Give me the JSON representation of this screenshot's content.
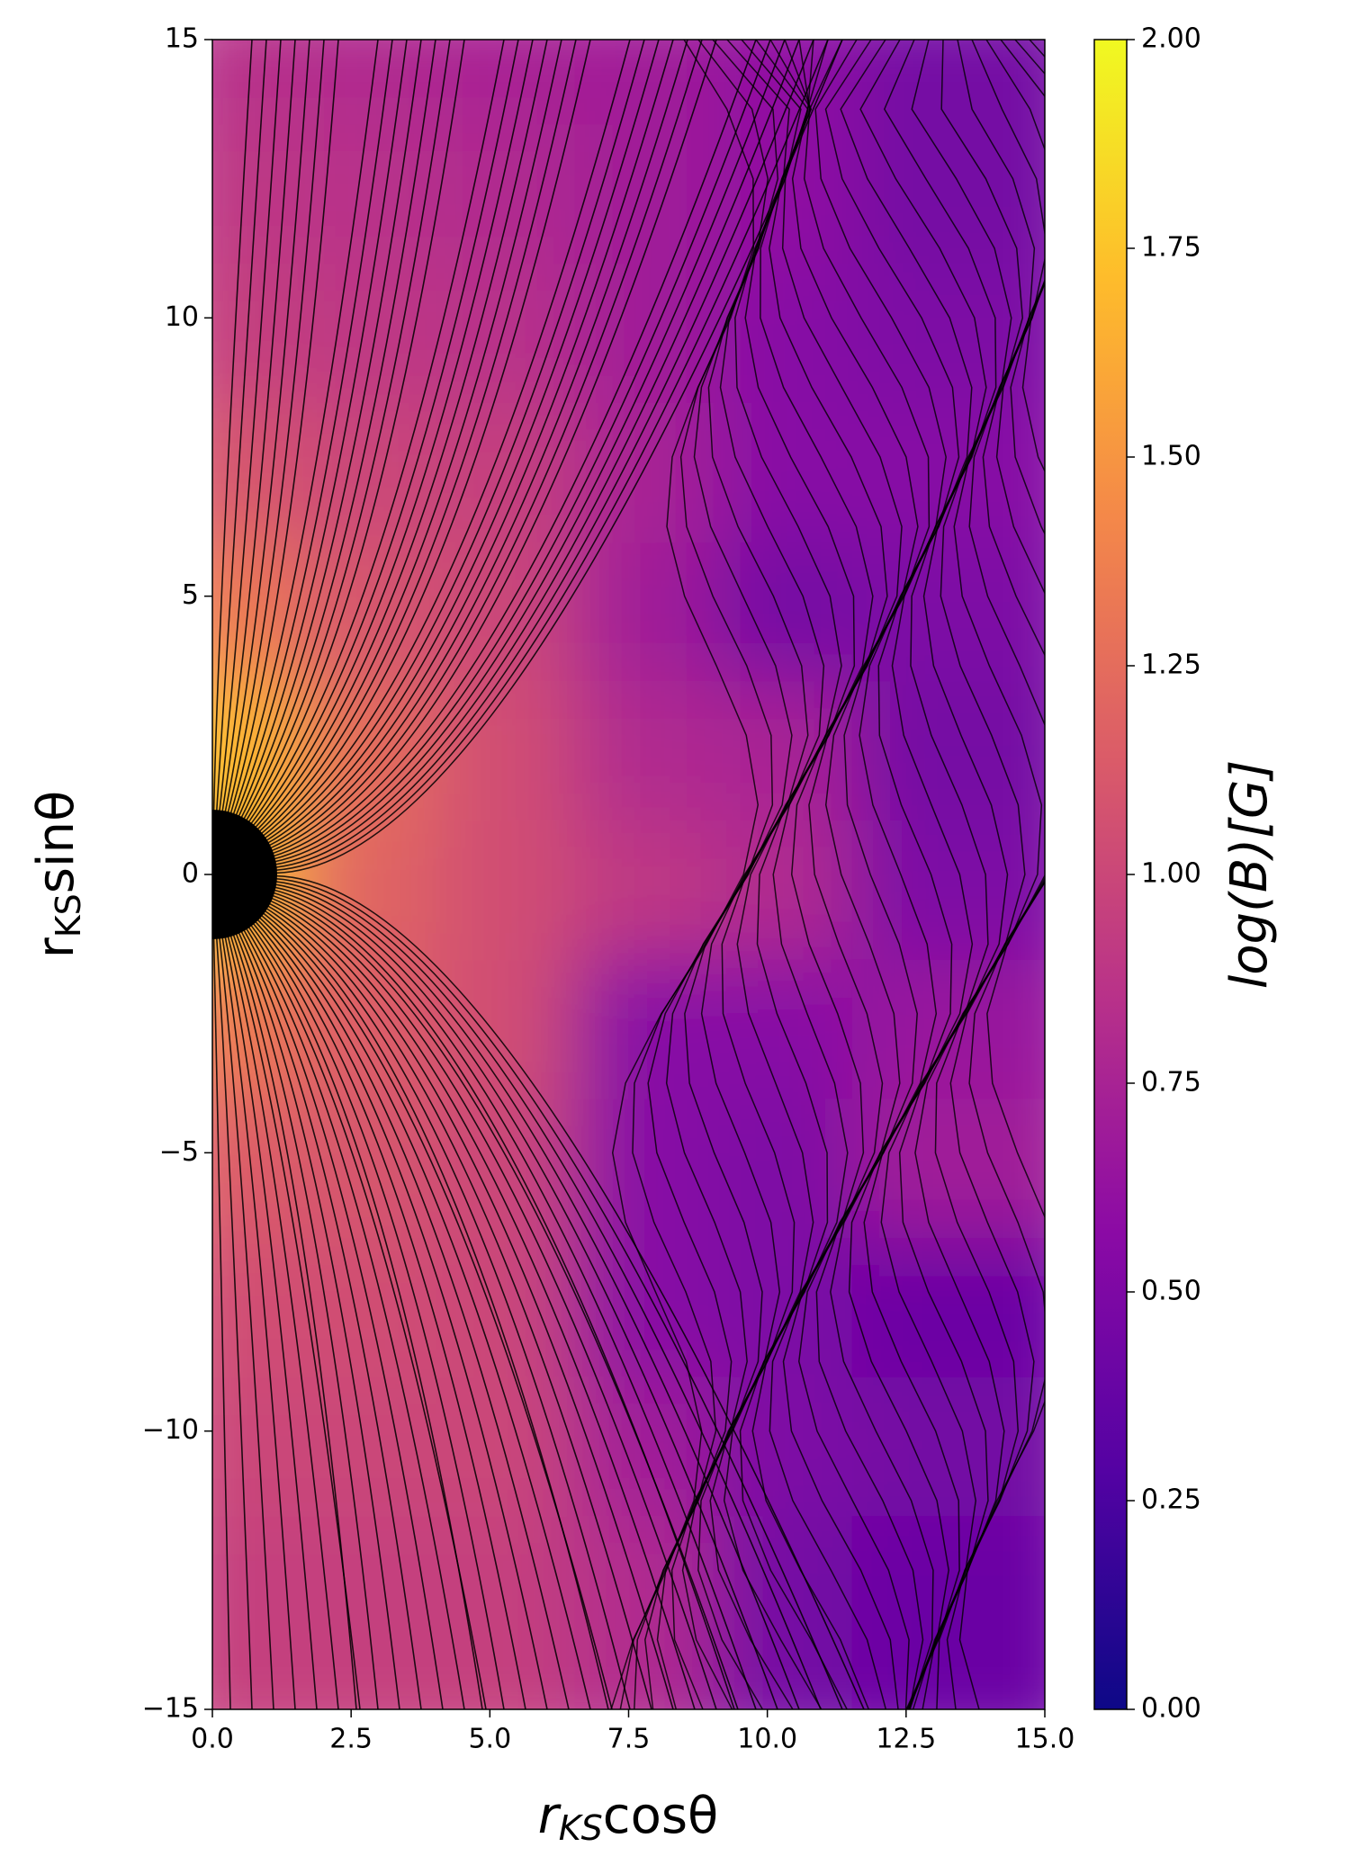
{
  "chart_data": {
    "type": "heatmap",
    "xlabel": [
      "r",
      "KS",
      "cosθ"
    ],
    "ylabel": [
      "r",
      "KS",
      "sinθ"
    ],
    "colorbar_label": "log(B)[G]",
    "colormap": "plasma",
    "x": [
      1.25,
      3.75,
      6.25,
      8.75,
      11.25,
      13.75
    ],
    "y": [
      13.75,
      11.25,
      8.75,
      6.25,
      3.75,
      1.25,
      -1.25,
      -3.75,
      -6.25,
      -8.75,
      -11.25,
      -13.75
    ],
    "z": [
      [
        0.85,
        0.8,
        0.75,
        0.7,
        0.6,
        0.45
      ],
      [
        0.9,
        0.85,
        0.8,
        0.7,
        0.6,
        0.45
      ],
      [
        0.95,
        0.9,
        0.85,
        0.7,
        0.55,
        0.5
      ],
      [
        1.1,
        1.0,
        0.95,
        0.75,
        0.55,
        0.55
      ],
      [
        1.35,
        1.1,
        1.0,
        0.7,
        0.45,
        0.5
      ],
      [
        1.7,
        1.25,
        1.05,
        0.8,
        0.75,
        0.45
      ],
      [
        1.7,
        1.2,
        1.05,
        0.9,
        0.8,
        0.5
      ],
      [
        1.35,
        1.15,
        1.05,
        0.55,
        0.55,
        0.65
      ],
      [
        1.15,
        1.1,
        1.0,
        0.55,
        0.5,
        0.7
      ],
      [
        1.05,
        1.05,
        1.0,
        0.55,
        0.5,
        0.4
      ],
      [
        1.0,
        1.0,
        1.0,
        0.7,
        0.5,
        0.45
      ],
      [
        0.95,
        0.95,
        0.95,
        0.8,
        0.45,
        0.4
      ]
    ],
    "xlim": [
      0,
      15
    ],
    "ylim": [
      -15,
      15
    ],
    "clim": [
      0,
      2
    ],
    "xticks": [
      {
        "value": 0,
        "label": "0.0"
      },
      {
        "value": 2.5,
        "label": "2.5"
      },
      {
        "value": 5,
        "label": "5.0"
      },
      {
        "value": 7.5,
        "label": "7.5"
      },
      {
        "value": 10,
        "label": "10.0"
      },
      {
        "value": 12.5,
        "label": "12.5"
      },
      {
        "value": 15,
        "label": "15.0"
      }
    ],
    "yticks": [
      {
        "value": -15,
        "label": "−15"
      },
      {
        "value": -10,
        "label": "−10"
      },
      {
        "value": -5,
        "label": "−5"
      },
      0,
      5,
      10,
      15
    ],
    "cticks": [
      {
        "value": 0,
        "label": "0.00"
      },
      {
        "value": 0.25,
        "label": "0.25"
      },
      {
        "value": 0.5,
        "label": "0.50"
      },
      {
        "value": 0.75,
        "label": "0.75"
      },
      {
        "value": 1,
        "label": "1.00"
      },
      {
        "value": 1.25,
        "label": "1.25"
      },
      {
        "value": 1.5,
        "label": "1.50"
      },
      {
        "value": 1.75,
        "label": "1.75"
      },
      {
        "value": 2,
        "label": "2.00"
      }
    ]
  }
}
